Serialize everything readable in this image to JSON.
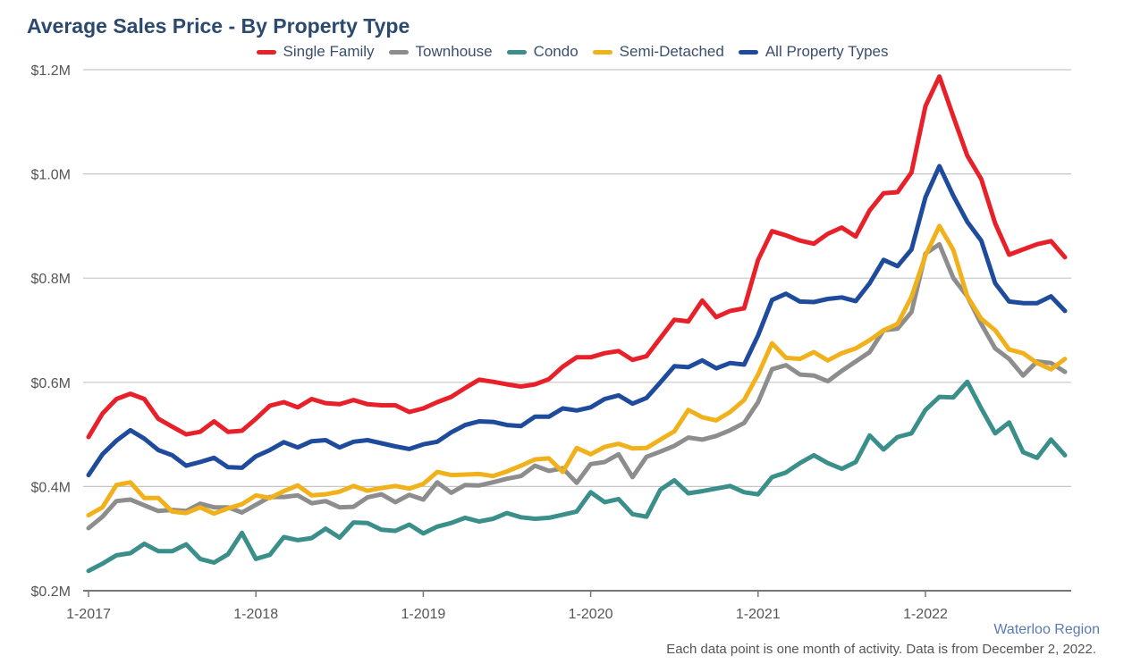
{
  "title": "Average Sales Price - By Property Type",
  "region_label": "Waterloo Region",
  "footnote": "Each data point is one month of activity. Data is from December 2, 2022.",
  "chart_data": {
    "type": "line",
    "title": "Average Sales Price - By Property Type",
    "xlabel": "",
    "ylabel": "",
    "ylim": [
      200000,
      1200000
    ],
    "yticks": [
      {
        "value": 200000,
        "label": "$0.2M"
      },
      {
        "value": 400000,
        "label": "$0.4M"
      },
      {
        "value": 600000,
        "label": "$0.6M"
      },
      {
        "value": 800000,
        "label": "$0.8M"
      },
      {
        "value": 1000000,
        "label": "$1.0M"
      },
      {
        "value": 1200000,
        "label": "$1.2M"
      }
    ],
    "xticks": [
      {
        "index": 0,
        "label": "1-2017"
      },
      {
        "index": 12,
        "label": "1-2018"
      },
      {
        "index": 24,
        "label": "1-2019"
      },
      {
        "index": 36,
        "label": "1-2020"
      },
      {
        "index": 48,
        "label": "1-2021"
      },
      {
        "index": 60,
        "label": "1-2022"
      }
    ],
    "x_start": "2017-01",
    "x_end": "2022-11",
    "grid": true,
    "legend_position": "top",
    "series": [
      {
        "name": "Single Family",
        "color": "#e8202a",
        "values": [
          495000,
          540000,
          568000,
          578000,
          568000,
          530000,
          515000,
          500000,
          505000,
          525000,
          505000,
          507000,
          530000,
          555000,
          562000,
          552000,
          568000,
          560000,
          558000,
          566000,
          558000,
          556000,
          556000,
          543000,
          550000,
          562000,
          572000,
          589000,
          605000,
          601000,
          596000,
          592000,
          596000,
          606000,
          630000,
          648000,
          648000,
          656000,
          660000,
          643000,
          650000,
          685000,
          720000,
          717000,
          757000,
          725000,
          737000,
          742000,
          835000,
          890000,
          882000,
          872000,
          866000,
          885000,
          897000,
          880000,
          930000,
          963000,
          965000,
          1003000,
          1130000,
          1187000,
          1110000,
          1035000,
          990000,
          905000,
          845000,
          855000,
          865000,
          871000,
          840000
        ]
      },
      {
        "name": "Townhouse",
        "color": "#8d8d8d",
        "values": [
          320000,
          342000,
          372000,
          375000,
          364000,
          353000,
          355000,
          353000,
          367000,
          360000,
          360000,
          350000,
          365000,
          380000,
          380000,
          383000,
          368000,
          372000,
          360000,
          361000,
          379000,
          385000,
          370000,
          384000,
          375000,
          408000,
          388000,
          403000,
          402000,
          408000,
          415000,
          420000,
          440000,
          430000,
          435000,
          407000,
          443000,
          447000,
          462000,
          418000,
          457000,
          467000,
          478000,
          494000,
          490000,
          497000,
          508000,
          522000,
          562000,
          625000,
          633000,
          615000,
          613000,
          602000,
          622000,
          640000,
          658000,
          700000,
          703000,
          735000,
          847000,
          865000,
          800000,
          765000,
          712000,
          665000,
          645000,
          613000,
          640000,
          637000,
          620000
        ]
      },
      {
        "name": "Condo",
        "color": "#3a8f8a",
        "values": [
          238000,
          252000,
          268000,
          272000,
          290000,
          276000,
          276000,
          289000,
          261000,
          254000,
          270000,
          311000,
          261000,
          269000,
          303000,
          297000,
          301000,
          319000,
          302000,
          331000,
          330000,
          317000,
          315000,
          327000,
          310000,
          323000,
          330000,
          340000,
          333000,
          338000,
          349000,
          341000,
          338000,
          340000,
          346000,
          352000,
          389000,
          370000,
          376000,
          347000,
          342000,
          394000,
          412000,
          387000,
          391000,
          396000,
          401000,
          389000,
          385000,
          418000,
          427000,
          445000,
          460000,
          445000,
          434000,
          447000,
          498000,
          471000,
          495000,
          502000,
          547000,
          572000,
          571000,
          601000,
          550000,
          502000,
          523000,
          466000,
          455000,
          490000,
          460000
        ]
      },
      {
        "name": "Semi-Detached",
        "color": "#f0b11b",
        "values": [
          345000,
          360000,
          403000,
          408000,
          378000,
          378000,
          352000,
          349000,
          360000,
          348000,
          358000,
          366000,
          383000,
          378000,
          391000,
          402000,
          383000,
          385000,
          390000,
          401000,
          392000,
          397000,
          401000,
          396000,
          405000,
          428000,
          422000,
          423000,
          424000,
          420000,
          429000,
          440000,
          452000,
          454000,
          428000,
          474000,
          462000,
          476000,
          482000,
          473000,
          474000,
          490000,
          506000,
          547000,
          533000,
          527000,
          543000,
          566000,
          615000,
          675000,
          647000,
          645000,
          658000,
          642000,
          656000,
          665000,
          681000,
          700000,
          712000,
          764000,
          843000,
          900000,
          854000,
          765000,
          722000,
          700000,
          663000,
          656000,
          637000,
          625000,
          645000
        ]
      },
      {
        "name": "All Property Types",
        "color": "#1f4b9c",
        "values": [
          422000,
          462000,
          488000,
          508000,
          492000,
          470000,
          460000,
          440000,
          447000,
          455000,
          437000,
          436000,
          458000,
          470000,
          485000,
          475000,
          487000,
          489000,
          475000,
          486000,
          489000,
          483000,
          477000,
          472000,
          481000,
          486000,
          504000,
          518000,
          525000,
          524000,
          518000,
          516000,
          534000,
          534000,
          550000,
          546000,
          552000,
          568000,
          575000,
          559000,
          570000,
          600000,
          631000,
          629000,
          642000,
          627000,
          637000,
          634000,
          690000,
          758000,
          770000,
          755000,
          754000,
          760000,
          763000,
          756000,
          790000,
          835000,
          823000,
          855000,
          955000,
          1015000,
          958000,
          908000,
          872000,
          790000,
          755000,
          752000,
          752000,
          765000,
          737000
        ]
      }
    ]
  }
}
